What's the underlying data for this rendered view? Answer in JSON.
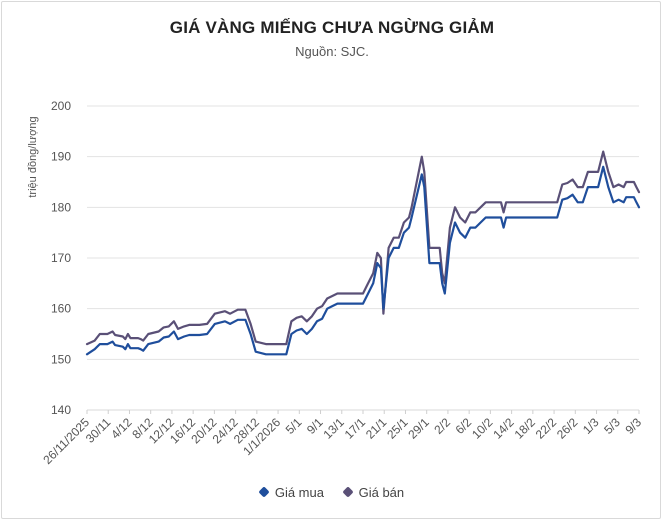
{
  "chart_data": {
    "type": "line",
    "title": "GIÁ VÀNG MIẾNG CHƯA NGỪNG GIẢM",
    "subtitle": "Nguồn: SJC.",
    "ylabel": "triệu đồng/lượng",
    "xlabel": "",
    "ylim": [
      140,
      200
    ],
    "yticks": [
      140,
      150,
      160,
      170,
      180,
      190,
      200
    ],
    "grid": true,
    "legend_position": "bottom",
    "x_tick_labels": [
      "26/11/2025",
      "30/11",
      "4/12",
      "8/12",
      "12/12",
      "16/12",
      "20/12",
      "24/12",
      "28/12",
      "1/1/2026",
      "5/1",
      "9/1",
      "13/1",
      "17/1",
      "21/1",
      "25/1",
      "29/1",
      "2/2",
      "6/2",
      "10/2",
      "14/2",
      "18/2",
      "22/2",
      "26/2",
      "1/3",
      "5/3",
      "9/3"
    ],
    "series": [
      {
        "name": "Giá mua",
        "color": "#1f4e9c",
        "values": [
          [
            0,
            151
          ],
          [
            1.5,
            152
          ],
          [
            2.5,
            153
          ],
          [
            4,
            153
          ],
          [
            5,
            153.5
          ],
          [
            5.5,
            152.8
          ],
          [
            7,
            152.5
          ],
          [
            7.5,
            152
          ],
          [
            8,
            153
          ],
          [
            8.5,
            152.2
          ],
          [
            10,
            152.2
          ],
          [
            10.5,
            152
          ],
          [
            11,
            151.7
          ],
          [
            12,
            153
          ],
          [
            14,
            153.5
          ],
          [
            15,
            154.3
          ],
          [
            16,
            154.5
          ],
          [
            17,
            155.5
          ],
          [
            17.8,
            154
          ],
          [
            19,
            154.5
          ],
          [
            20,
            154.8
          ],
          [
            22,
            154.8
          ],
          [
            23.5,
            155
          ],
          [
            25,
            157
          ],
          [
            27,
            157.5
          ],
          [
            28,
            157
          ],
          [
            29.5,
            157.8
          ],
          [
            31,
            157.8
          ],
          [
            32,
            155
          ],
          [
            33,
            151.5
          ],
          [
            35,
            151
          ],
          [
            38,
            151
          ],
          [
            39,
            151
          ],
          [
            40,
            155
          ],
          [
            41,
            155.7
          ],
          [
            42,
            156
          ],
          [
            43,
            155
          ],
          [
            44,
            156
          ],
          [
            45,
            157.5
          ],
          [
            46,
            158
          ],
          [
            47,
            160
          ],
          [
            48,
            160.5
          ],
          [
            49,
            161
          ],
          [
            50,
            161
          ],
          [
            53,
            161
          ],
          [
            54,
            161
          ],
          [
            55,
            163
          ],
          [
            56,
            165
          ],
          [
            56.8,
            169
          ],
          [
            57.5,
            168
          ],
          [
            58,
            160
          ],
          [
            59,
            170
          ],
          [
            60,
            172
          ],
          [
            61,
            172
          ],
          [
            62,
            175
          ],
          [
            63,
            176
          ],
          [
            63.5,
            178
          ],
          [
            65.5,
            186.5
          ],
          [
            66,
            184
          ],
          [
            67,
            169
          ],
          [
            68,
            169
          ],
          [
            69,
            169
          ],
          [
            69.5,
            165
          ],
          [
            70,
            163
          ],
          [
            71,
            173
          ],
          [
            72,
            177
          ],
          [
            73,
            175
          ],
          [
            74,
            174
          ],
          [
            75,
            176
          ],
          [
            76,
            176
          ],
          [
            77,
            177
          ],
          [
            78,
            178
          ],
          [
            79,
            178
          ],
          [
            80,
            178
          ],
          [
            81,
            178
          ],
          [
            81.5,
            176
          ],
          [
            82,
            178
          ],
          [
            84,
            178
          ],
          [
            88,
            178
          ],
          [
            91,
            178
          ],
          [
            92,
            178
          ],
          [
            93,
            181.5
          ],
          [
            94,
            181.8
          ],
          [
            95,
            182.5
          ],
          [
            96,
            181
          ],
          [
            97,
            181
          ],
          [
            98,
            184
          ],
          [
            100,
            184
          ],
          [
            101,
            188
          ],
          [
            102,
            184
          ],
          [
            103,
            181
          ],
          [
            104,
            181.5
          ],
          [
            105,
            181
          ],
          [
            105.5,
            182
          ],
          [
            107,
            182
          ],
          [
            107.5,
            181
          ],
          [
            108,
            180
          ]
        ]
      },
      {
        "name": "Giá bán",
        "color": "#5a5077",
        "values": [
          [
            0,
            153
          ],
          [
            1.5,
            153.7
          ],
          [
            2.5,
            155
          ],
          [
            4,
            155
          ],
          [
            5,
            155.5
          ],
          [
            5.5,
            154.8
          ],
          [
            7,
            154.5
          ],
          [
            7.5,
            154
          ],
          [
            8,
            155
          ],
          [
            8.5,
            154.2
          ],
          [
            10,
            154.2
          ],
          [
            10.5,
            154
          ],
          [
            11,
            153.7
          ],
          [
            12,
            155
          ],
          [
            14,
            155.5
          ],
          [
            15,
            156.3
          ],
          [
            16,
            156.5
          ],
          [
            17,
            157.5
          ],
          [
            17.8,
            156
          ],
          [
            19,
            156.5
          ],
          [
            20,
            156.8
          ],
          [
            22,
            156.8
          ],
          [
            23.5,
            157
          ],
          [
            25,
            159
          ],
          [
            27,
            159.5
          ],
          [
            28,
            159
          ],
          [
            29.5,
            159.8
          ],
          [
            31,
            159.8
          ],
          [
            32,
            157
          ],
          [
            33,
            153.5
          ],
          [
            35,
            153
          ],
          [
            38,
            153
          ],
          [
            39,
            153
          ],
          [
            40,
            157.5
          ],
          [
            41,
            158.2
          ],
          [
            42,
            158.5
          ],
          [
            43,
            157.5
          ],
          [
            44,
            158.5
          ],
          [
            45,
            160
          ],
          [
            46,
            160.5
          ],
          [
            47,
            162
          ],
          [
            48,
            162.5
          ],
          [
            49,
            163
          ],
          [
            50,
            163
          ],
          [
            53,
            163
          ],
          [
            54,
            163
          ],
          [
            55,
            165
          ],
          [
            56,
            167
          ],
          [
            56.8,
            171
          ],
          [
            57.5,
            170
          ],
          [
            58,
            159
          ],
          [
            59,
            172
          ],
          [
            60,
            174
          ],
          [
            61,
            174
          ],
          [
            62,
            177
          ],
          [
            63,
            178
          ],
          [
            63.5,
            180
          ],
          [
            65.5,
            190
          ],
          [
            66,
            187
          ],
          [
            67,
            172
          ],
          [
            68,
            172
          ],
          [
            69,
            172
          ],
          [
            69.5,
            167
          ],
          [
            70,
            165
          ],
          [
            71,
            176
          ],
          [
            72,
            180
          ],
          [
            73,
            178
          ],
          [
            74,
            177
          ],
          [
            75,
            179
          ],
          [
            76,
            179
          ],
          [
            77,
            180
          ],
          [
            78,
            181
          ],
          [
            79,
            181
          ],
          [
            80,
            181
          ],
          [
            81,
            181
          ],
          [
            81.5,
            179
          ],
          [
            82,
            181
          ],
          [
            84,
            181
          ],
          [
            88,
            181
          ],
          [
            91,
            181
          ],
          [
            92,
            181
          ],
          [
            93,
            184.5
          ],
          [
            94,
            184.8
          ],
          [
            95,
            185.5
          ],
          [
            96,
            184
          ],
          [
            97,
            184
          ],
          [
            98,
            187
          ],
          [
            100,
            187
          ],
          [
            101,
            191
          ],
          [
            102,
            187
          ],
          [
            103,
            184
          ],
          [
            104,
            184.5
          ],
          [
            105,
            184
          ],
          [
            105.5,
            185
          ],
          [
            107,
            185
          ],
          [
            107.5,
            184
          ],
          [
            108,
            183
          ]
        ]
      }
    ]
  }
}
